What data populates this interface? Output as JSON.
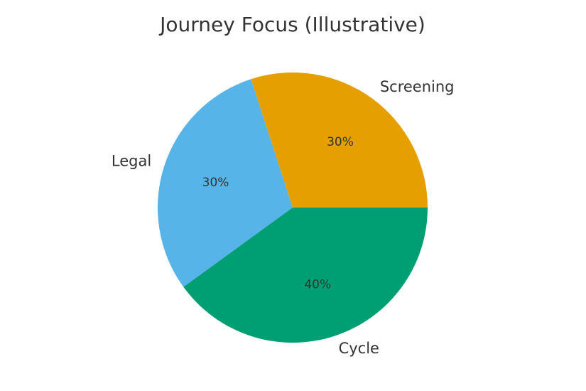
{
  "chart_data": {
    "type": "pie",
    "title": "Journey Focus (Illustrative)",
    "categories": [
      "Screening",
      "Legal",
      "Cycle"
    ],
    "values": [
      30,
      30,
      40
    ],
    "data_labels": [
      "30%",
      "30%",
      "40%"
    ],
    "colors": [
      "#E69F00",
      "#56B4E9",
      "#009E73"
    ],
    "start_angle_deg": 0,
    "direction": "counterclockwise"
  }
}
